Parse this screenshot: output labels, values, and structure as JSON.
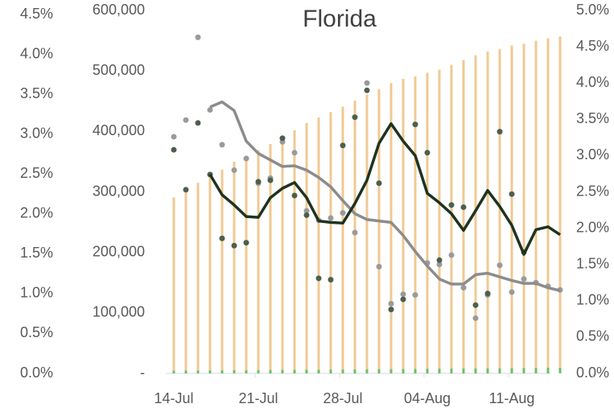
{
  "chart_data": {
    "type": "combo",
    "title": "Florida",
    "categories": [
      "14-Jul",
      null,
      null,
      null,
      null,
      null,
      null,
      "21-Jul",
      null,
      null,
      null,
      null,
      null,
      null,
      "28-Jul",
      null,
      null,
      null,
      null,
      null,
      null,
      "04-Aug",
      null,
      null,
      null,
      null,
      null,
      null,
      "11-Aug",
      null,
      null,
      null,
      null
    ],
    "ylim": [
      0,
      4.5
    ],
    "yticks": [
      {
        "value": 0,
        "label": "0.0%"
      },
      {
        "value": 0.5,
        "label": "0.5%"
      },
      {
        "value": 1,
        "label": "1.0%"
      },
      {
        "value": 1.5,
        "label": "1.5%"
      },
      {
        "value": 2,
        "label": "2.0%"
      },
      {
        "value": 2.5,
        "label": "2.5%"
      },
      {
        "value": 3,
        "label": "3.0%"
      },
      {
        "value": 3.5,
        "label": "3.5%"
      },
      {
        "value": 4,
        "label": "4.0%"
      },
      {
        "value": 4.5,
        "label": "4.5%"
      }
    ],
    "y2lim": [
      0,
      600000
    ],
    "y2ticks": [
      {
        "value": 0,
        "label": "-"
      },
      {
        "value": 100000,
        "label": "100,000"
      },
      {
        "value": 200000,
        "label": "200,000"
      },
      {
        "value": 300000,
        "label": "300,000"
      },
      {
        "value": 400000,
        "label": "400,000"
      },
      {
        "value": 500000,
        "label": "500,000"
      },
      {
        "value": 600000,
        "label": "600,000"
      }
    ],
    "y3lim": [
      0,
      5
    ],
    "y3ticks": [
      {
        "value": 0,
        "label": "0.0%"
      },
      {
        "value": 0.5,
        "label": "0.5%"
      },
      {
        "value": 1,
        "label": "1.0%"
      },
      {
        "value": 1.5,
        "label": "1.5%"
      },
      {
        "value": 2,
        "label": "2.0%"
      },
      {
        "value": 2.5,
        "label": "2.5%"
      },
      {
        "value": 3,
        "label": "3.0%"
      },
      {
        "value": 3.5,
        "label": "3.5%"
      },
      {
        "value": 4,
        "label": "4.0%"
      },
      {
        "value": 4.5,
        "label": "4.5%"
      },
      {
        "value": 5,
        "label": "5.0%"
      }
    ],
    "series": [
      {
        "type": "bar",
        "axis": "y2",
        "color": "#f0c992",
        "values": [
          291000,
          301000,
          315000,
          327000,
          337000,
          350000,
          360000,
          369000,
          379000,
          389000,
          402000,
          414000,
          423000,
          432000,
          441000,
          451000,
          461000,
          470000,
          480000,
          487000,
          491000,
          497000,
          502000,
          510000,
          518000,
          526000,
          532000,
          536000,
          542000,
          545000,
          550000,
          554000,
          557000
        ]
      },
      {
        "type": "bar",
        "axis": "y2",
        "color": "#6abf69",
        "values": [
          4500,
          4600,
          4750,
          4900,
          5050,
          5200,
          5300,
          5450,
          5600,
          5750,
          5900,
          6050,
          6150,
          6300,
          6450,
          6600,
          6750,
          6900,
          7050,
          7150,
          7300,
          7450,
          7600,
          7750,
          7900,
          8050,
          8200,
          8350,
          8500,
          8700,
          8900,
          9100,
          9300
        ]
      },
      {
        "type": "scatter",
        "axis": "y3",
        "color": "#9a9a9a",
        "values": [
          3.26,
          3.49,
          4.63,
          3.63,
          3.15,
          2.8,
          2.96,
          2.62,
          2.69,
          3.19,
          3.04,
          2.24,
          2.11,
          2.14,
          2.21,
          1.94,
          4.0,
          1.47,
          0.96,
          1.09,
          1.08,
          1.52,
          1.5,
          1.63,
          1.18,
          0.76,
          1.08,
          1.49,
          1.12,
          1.3,
          1.25,
          1.2,
          1.15
        ]
      },
      {
        "type": "scatter",
        "axis": "y3",
        "color": "#4d5f4f",
        "values": [
          3.08,
          2.53,
          3.45,
          2.74,
          1.86,
          1.76,
          1.8,
          2.64,
          2.66,
          3.24,
          2.45,
          2.18,
          1.31,
          1.29,
          3.14,
          3.53,
          3.9,
          2.62,
          0.88,
          1.02,
          3.43,
          3.04,
          1.56,
          2.32,
          2.29,
          0.94,
          1.1,
          3.33,
          2.47,
          1.67,
          null,
          null,
          null
        ]
      },
      {
        "type": "line",
        "axis": "y3",
        "color": "#8c8c8c",
        "values": [
          null,
          null,
          null,
          3.67,
          3.74,
          3.62,
          3.2,
          3.03,
          2.94,
          2.85,
          2.86,
          2.8,
          2.7,
          2.57,
          2.38,
          2.2,
          2.12,
          2.1,
          2.08,
          1.9,
          1.68,
          1.48,
          1.3,
          1.23,
          1.23,
          1.36,
          1.38,
          1.33,
          1.28,
          1.24,
          1.24,
          1.18,
          1.14
        ]
      },
      {
        "type": "line",
        "axis": "y3",
        "color": "#1e3320",
        "values": [
          null,
          null,
          null,
          2.74,
          2.46,
          2.32,
          2.16,
          2.15,
          2.42,
          2.55,
          2.63,
          2.42,
          2.1,
          2.08,
          2.07,
          2.34,
          2.66,
          3.17,
          3.44,
          3.2,
          3.0,
          2.48,
          2.35,
          2.2,
          1.97,
          2.24,
          2.52,
          2.3,
          2.04,
          1.64,
          1.98,
          2.02,
          1.91
        ]
      }
    ]
  }
}
